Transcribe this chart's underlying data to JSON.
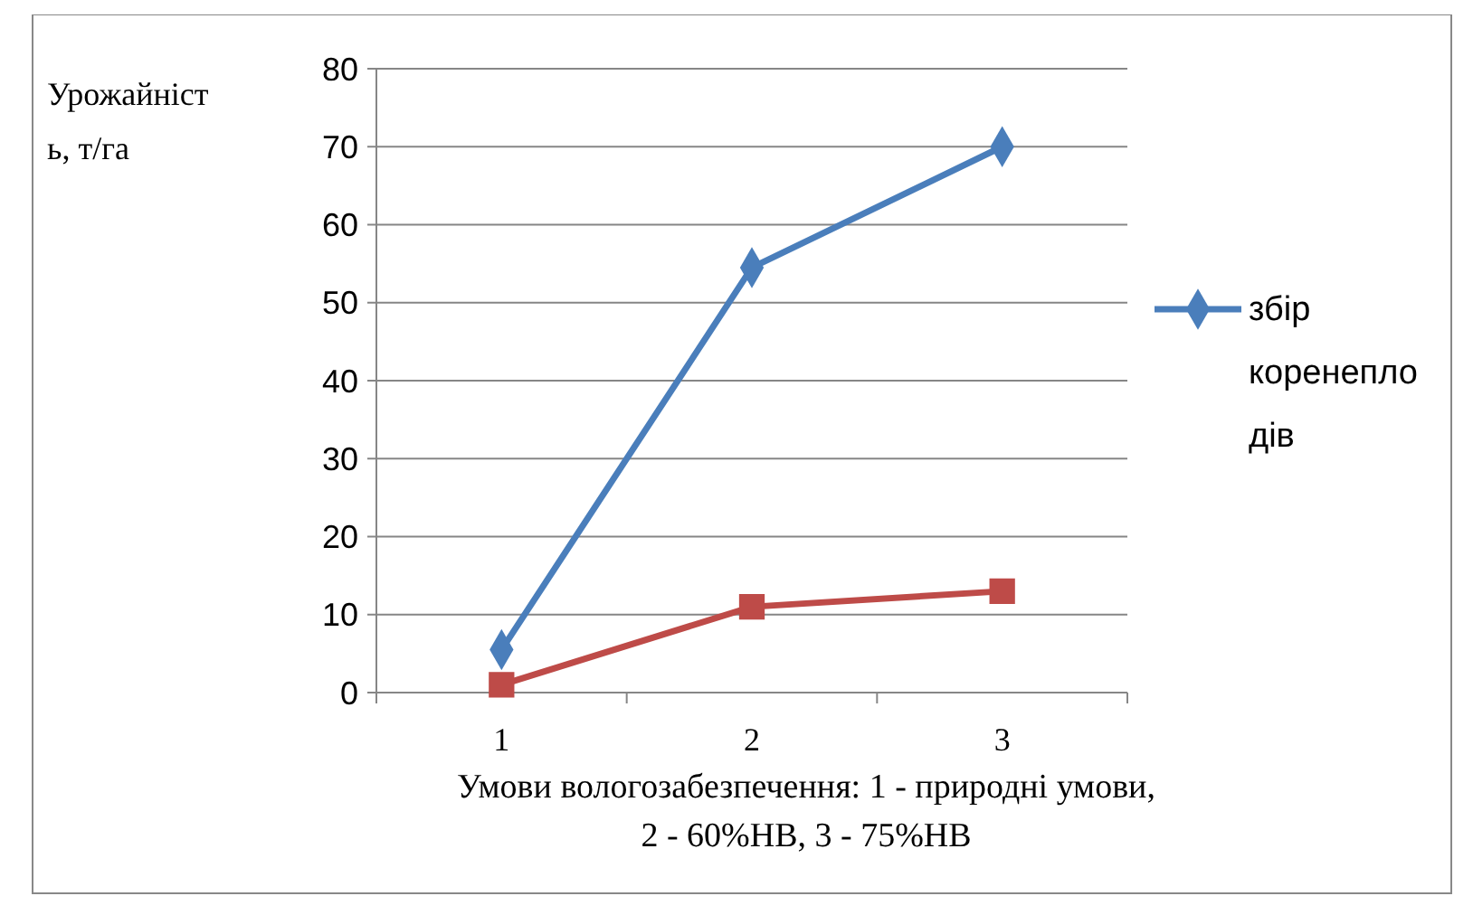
{
  "chart_data": {
    "type": "line",
    "xlabel": "Умови вологозабезпечення: 1 - природні умови, 2 - 60%НВ, 3 - 75%НВ",
    "ylabel": "Урожайність, т/га",
    "categories": [
      "1",
      "2",
      "3"
    ],
    "ylim": [
      0,
      80
    ],
    "yticks": [
      0,
      10,
      20,
      30,
      40,
      50,
      60,
      70,
      80
    ],
    "grid": "y",
    "legend": "right",
    "series": [
      {
        "name": "збір коренеплодів",
        "color": "#4a7ebb",
        "values": [
          5.5,
          54.5,
          70
        ],
        "marker": "diamond"
      },
      {
        "color": "#be4b48",
        "values": [
          1,
          11,
          13
        ],
        "marker": "square"
      }
    ]
  }
}
